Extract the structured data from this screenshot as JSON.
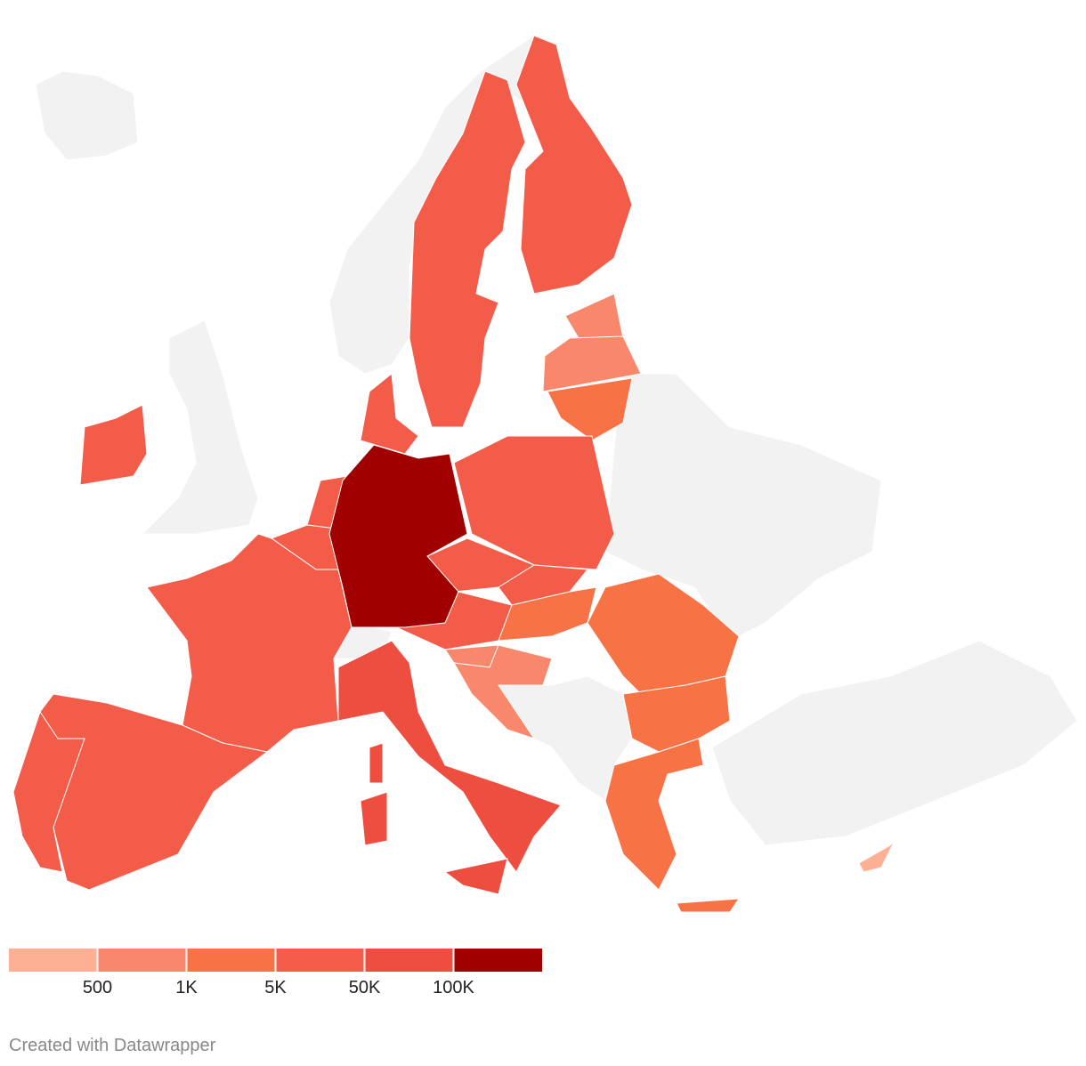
{
  "legend": {
    "colors": [
      "#fdb094",
      "#f9876c",
      "#f77346",
      "#f45c4a",
      "#ee4e40",
      "#a00000"
    ],
    "ticks": [
      500,
      {
        "value": 1000,
        "label": "1K"
      },
      {
        "value": 5000,
        "label": "5K"
      },
      {
        "value": 50000,
        "label": "50K"
      },
      {
        "value": 100000,
        "label": "100K"
      }
    ]
  },
  "footer": "Created with Datawrapper"
}
